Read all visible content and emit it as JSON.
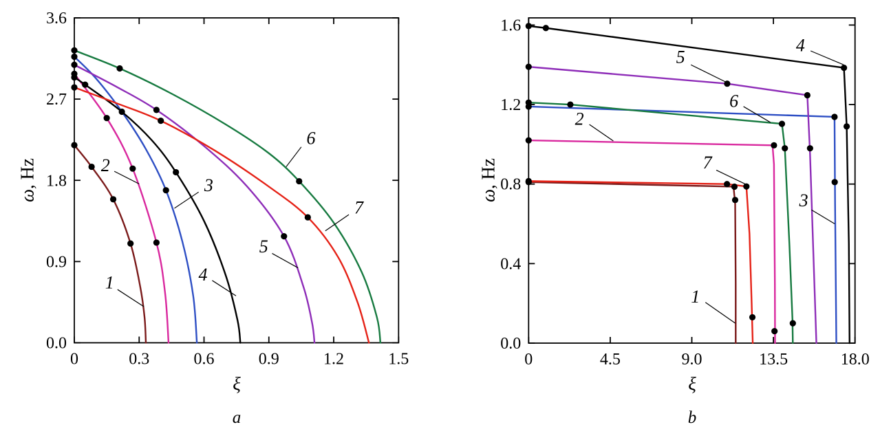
{
  "chart_data": [
    {
      "id": "a",
      "type": "line",
      "caption": "a",
      "xlabel": "ξ",
      "ylabel_symbol": "ω",
      "ylabel_rest": ", Hz",
      "xlim": [
        0,
        1.5
      ],
      "ylim": [
        0,
        3.6
      ],
      "xticks": [
        0,
        0.3,
        0.6,
        0.9,
        1.2,
        1.5
      ],
      "xtick_labels": [
        "0",
        "0.3",
        "0.6",
        "0.9",
        "1.2",
        "1.5"
      ],
      "yticks": [
        0,
        0.9,
        1.8,
        2.7,
        3.6
      ],
      "ytick_labels": [
        "0.0",
        "0.9",
        "1.8",
        "2.7",
        "3.6"
      ],
      "grid": false,
      "legend": "numbered curve labels with leader lines",
      "smooth": true,
      "series": [
        {
          "name": "1",
          "color": "#7B1B1B",
          "points": [
            [
              0,
              2.19
            ],
            [
              0.08,
              1.95
            ],
            [
              0.18,
              1.59
            ],
            [
              0.26,
              1.1
            ],
            [
              0.305,
              0.62
            ],
            [
              0.325,
              0.28
            ],
            [
              0.331,
              0
            ]
          ],
          "markers": [
            [
              0,
              2.19
            ],
            [
              0.08,
              1.95
            ],
            [
              0.18,
              1.59
            ],
            [
              0.26,
              1.1
            ]
          ]
        },
        {
          "name": "2",
          "color": "#D9289E",
          "points": [
            [
              0,
              2.98
            ],
            [
              0.15,
              2.49
            ],
            [
              0.27,
              1.93
            ],
            [
              0.38,
              1.11
            ],
            [
              0.42,
              0.55
            ],
            [
              0.436,
              0
            ]
          ],
          "markers": [
            [
              0,
              2.98
            ],
            [
              0.15,
              2.49
            ],
            [
              0.27,
              1.93
            ],
            [
              0.38,
              1.11
            ]
          ]
        },
        {
          "name": "3",
          "color": "#2E4FC4",
          "points": [
            [
              0,
              3.17
            ],
            [
              0.1,
              2.93
            ],
            [
              0.22,
              2.56
            ],
            [
              0.33,
              2.15
            ],
            [
              0.424,
              1.69
            ],
            [
              0.5,
              1.12
            ],
            [
              0.55,
              0.52
            ],
            [
              0.567,
              0
            ]
          ],
          "markers": [
            [
              0,
              3.17
            ],
            [
              0.424,
              1.69
            ]
          ]
        },
        {
          "name": "4",
          "color": "#000000",
          "points": [
            [
              0,
              2.94
            ],
            [
              0.05,
              2.86
            ],
            [
              0.22,
              2.56
            ],
            [
              0.36,
              2.24
            ],
            [
              0.47,
              1.89
            ],
            [
              0.6,
              1.35
            ],
            [
              0.7,
              0.75
            ],
            [
              0.755,
              0.25
            ],
            [
              0.768,
              0
            ]
          ],
          "markers": [
            [
              0,
              2.94
            ],
            [
              0.05,
              2.86
            ],
            [
              0.22,
              2.56
            ],
            [
              0.47,
              1.89
            ]
          ]
        },
        {
          "name": "5",
          "color": "#8E2DB8",
          "points": [
            [
              0,
              3.08
            ],
            [
              0.2,
              2.83
            ],
            [
              0.38,
              2.58
            ],
            [
              0.6,
              2.18
            ],
            [
              0.8,
              1.73
            ],
            [
              0.97,
              1.18
            ],
            [
              1.06,
              0.62
            ],
            [
              1.1,
              0.22
            ],
            [
              1.111,
              0
            ]
          ],
          "markers": [
            [
              0,
              3.08
            ],
            [
              0.38,
              2.58
            ],
            [
              0.97,
              1.18
            ]
          ]
        },
        {
          "name": "6",
          "color": "#177A40",
          "points": [
            [
              0,
              3.24
            ],
            [
              0.21,
              3.04
            ],
            [
              0.45,
              2.76
            ],
            [
              0.7,
              2.42
            ],
            [
              0.9,
              2.1
            ],
            [
              1.04,
              1.79
            ],
            [
              1.2,
              1.33
            ],
            [
              1.33,
              0.78
            ],
            [
              1.4,
              0.28
            ],
            [
              1.416,
              0
            ]
          ],
          "markers": [
            [
              0,
              3.24
            ],
            [
              0.21,
              3.04
            ],
            [
              1.04,
              1.79
            ]
          ]
        },
        {
          "name": "7",
          "color": "#E52217",
          "points": [
            [
              0,
              2.83
            ],
            [
              0.2,
              2.65
            ],
            [
              0.4,
              2.46
            ],
            [
              0.65,
              2.13
            ],
            [
              0.9,
              1.73
            ],
            [
              1.08,
              1.39
            ],
            [
              1.22,
              0.95
            ],
            [
              1.31,
              0.45
            ],
            [
              1.363,
              0
            ]
          ],
          "markers": [
            [
              0,
              2.83
            ],
            [
              0.4,
              2.46
            ],
            [
              1.08,
              1.39
            ]
          ]
        }
      ],
      "annotations": [
        {
          "text": "1",
          "x": 0.163,
          "y": 0.67,
          "line": [
            [
              0.2,
              0.59
            ],
            [
              0.322,
              0.4
            ]
          ]
        },
        {
          "text": "2",
          "x": 0.144,
          "y": 1.97,
          "line": [
            [
              0.185,
              1.9
            ],
            [
              0.3,
              1.76
            ]
          ]
        },
        {
          "text": "3",
          "x": 0.622,
          "y": 1.75,
          "line": [
            [
              0.575,
              1.67
            ],
            [
              0.463,
              1.49
            ]
          ]
        },
        {
          "text": "4",
          "x": 0.595,
          "y": 0.76,
          "line": [
            [
              0.638,
              0.69
            ],
            [
              0.748,
              0.52
            ]
          ]
        },
        {
          "text": "5",
          "x": 0.876,
          "y": 1.07,
          "line": [
            [
              0.915,
              0.99
            ],
            [
              1.035,
              0.83
            ]
          ]
        },
        {
          "text": "6",
          "x": 1.095,
          "y": 2.27,
          "line": [
            [
              1.05,
              2.17
            ],
            [
              0.98,
              1.95
            ]
          ]
        },
        {
          "text": "7",
          "x": 1.316,
          "y": 1.5,
          "line": [
            [
              1.27,
              1.42
            ],
            [
              1.161,
              1.24
            ]
          ]
        }
      ]
    },
    {
      "id": "b",
      "type": "line",
      "caption": "b",
      "xlabel": "ξ",
      "ylabel_symbol": "ω",
      "ylabel_rest": ", Hz",
      "xlim": [
        0,
        18
      ],
      "ylim": [
        0,
        1.636
      ],
      "xticks": [
        0,
        4.5,
        9.0,
        13.5,
        18.0
      ],
      "xtick_labels": [
        "0",
        "4.5",
        "9.0",
        "13.5",
        "18.0"
      ],
      "yticks": [
        0,
        0.4,
        0.8,
        1.2,
        1.6
      ],
      "ytick_labels": [
        "0.0",
        "0.4",
        "0.8",
        "1.2",
        "1.6"
      ],
      "grid": false,
      "legend": "numbered curve labels with leader lines",
      "smooth": false,
      "series": [
        {
          "name": "1",
          "color": "#7B1B1B",
          "points": [
            [
              0,
              0.81
            ],
            [
              11.3,
              0.787
            ],
            [
              11.39,
              0.7
            ],
            [
              11.42,
              0.3
            ],
            [
              11.42,
              0
            ]
          ],
          "markers": [
            [
              0,
              0.81
            ],
            [
              11.35,
              0.787
            ],
            [
              11.39,
              0.72
            ]
          ]
        },
        {
          "name": "2",
          "color": "#D9289E",
          "points": [
            [
              0,
              1.02
            ],
            [
              13.45,
              0.995
            ],
            [
              13.53,
              0.9
            ],
            [
              13.58,
              0.3
            ],
            [
              13.59,
              0
            ]
          ],
          "markers": [
            [
              0,
              1.02
            ],
            [
              13.53,
              0.995
            ],
            [
              13.56,
              0.06
            ]
          ]
        },
        {
          "name": "3",
          "color": "#2E4FC4",
          "points": [
            [
              0,
              1.19
            ],
            [
              16.87,
              1.138
            ],
            [
              16.9,
              0.7
            ],
            [
              16.97,
              0
            ]
          ],
          "markers": [
            [
              0,
              1.19
            ],
            [
              16.87,
              1.138
            ],
            [
              16.88,
              0.81
            ]
          ]
        },
        {
          "name": "6",
          "color": "#177A40",
          "points": [
            [
              0,
              1.21
            ],
            [
              2.3,
              1.2
            ],
            [
              13.97,
              1.103
            ],
            [
              14.13,
              0.98
            ],
            [
              14.38,
              0.5
            ],
            [
              14.55,
              0.12
            ],
            [
              14.57,
              0
            ]
          ],
          "markers": [
            [
              0,
              1.21
            ],
            [
              2.3,
              1.2
            ],
            [
              13.97,
              1.103
            ],
            [
              14.13,
              0.98
            ],
            [
              14.57,
              0.1
            ]
          ]
        },
        {
          "name": "5",
          "color": "#8E2DB8",
          "points": [
            [
              0,
              1.39
            ],
            [
              10.95,
              1.305
            ],
            [
              15.37,
              1.247
            ],
            [
              15.52,
              0.95
            ],
            [
              15.74,
              0.35
            ],
            [
              15.87,
              0
            ]
          ],
          "markers": [
            [
              0,
              1.39
            ],
            [
              10.95,
              1.305
            ],
            [
              15.37,
              1.247
            ],
            [
              15.52,
              0.98
            ]
          ]
        },
        {
          "name": "4",
          "color": "#000000",
          "points": [
            [
              0,
              1.595
            ],
            [
              0.95,
              1.585
            ],
            [
              17.39,
              1.385
            ],
            [
              17.54,
              1.09
            ],
            [
              17.66,
              0.5
            ],
            [
              17.7,
              0
            ]
          ],
          "markers": [
            [
              0,
              1.595
            ],
            [
              0.95,
              1.585
            ],
            [
              17.39,
              1.385
            ],
            [
              17.54,
              1.09
            ]
          ]
        },
        {
          "name": "7",
          "color": "#E52217",
          "points": [
            [
              0,
              0.815
            ],
            [
              10.94,
              0.8
            ],
            [
              12.01,
              0.788
            ],
            [
              12.18,
              0.55
            ],
            [
              12.3,
              0.2
            ],
            [
              12.36,
              0
            ]
          ],
          "markers": [
            [
              0,
              0.815
            ],
            [
              10.94,
              0.8
            ],
            [
              12.01,
              0.788
            ],
            [
              12.34,
              0.13
            ]
          ]
        }
      ],
      "annotations": [
        {
          "text": "1",
          "x": 9.2,
          "y": 0.235,
          "line": [
            [
              9.75,
              0.205
            ],
            [
              11.4,
              0.1
            ]
          ]
        },
        {
          "text": "2",
          "x": 2.8,
          "y": 1.13,
          "line": [
            [
              3.35,
              1.1
            ],
            [
              4.67,
              1.017
            ]
          ]
        },
        {
          "text": "3",
          "x": 15.17,
          "y": 0.72,
          "line": [
            [
              15.6,
              0.67
            ],
            [
              16.88,
              0.6
            ]
          ]
        },
        {
          "text": "4",
          "x": 14.99,
          "y": 1.5,
          "line": [
            [
              15.55,
              1.47
            ],
            [
              17.37,
              1.4
            ]
          ]
        },
        {
          "text": "5",
          "x": 8.38,
          "y": 1.44,
          "line": [
            [
              8.95,
              1.4
            ],
            [
              10.95,
              1.31
            ]
          ]
        },
        {
          "text": "6",
          "x": 11.32,
          "y": 1.22,
          "line": [
            [
              11.85,
              1.19
            ],
            [
              13.34,
              1.11
            ]
          ]
        },
        {
          "text": "7",
          "x": 9.86,
          "y": 0.91,
          "line": [
            [
              10.35,
              0.87
            ],
            [
              11.95,
              0.8
            ]
          ]
        }
      ]
    }
  ],
  "style": {
    "marker_color": "#000000",
    "axis_color": "#000000"
  }
}
